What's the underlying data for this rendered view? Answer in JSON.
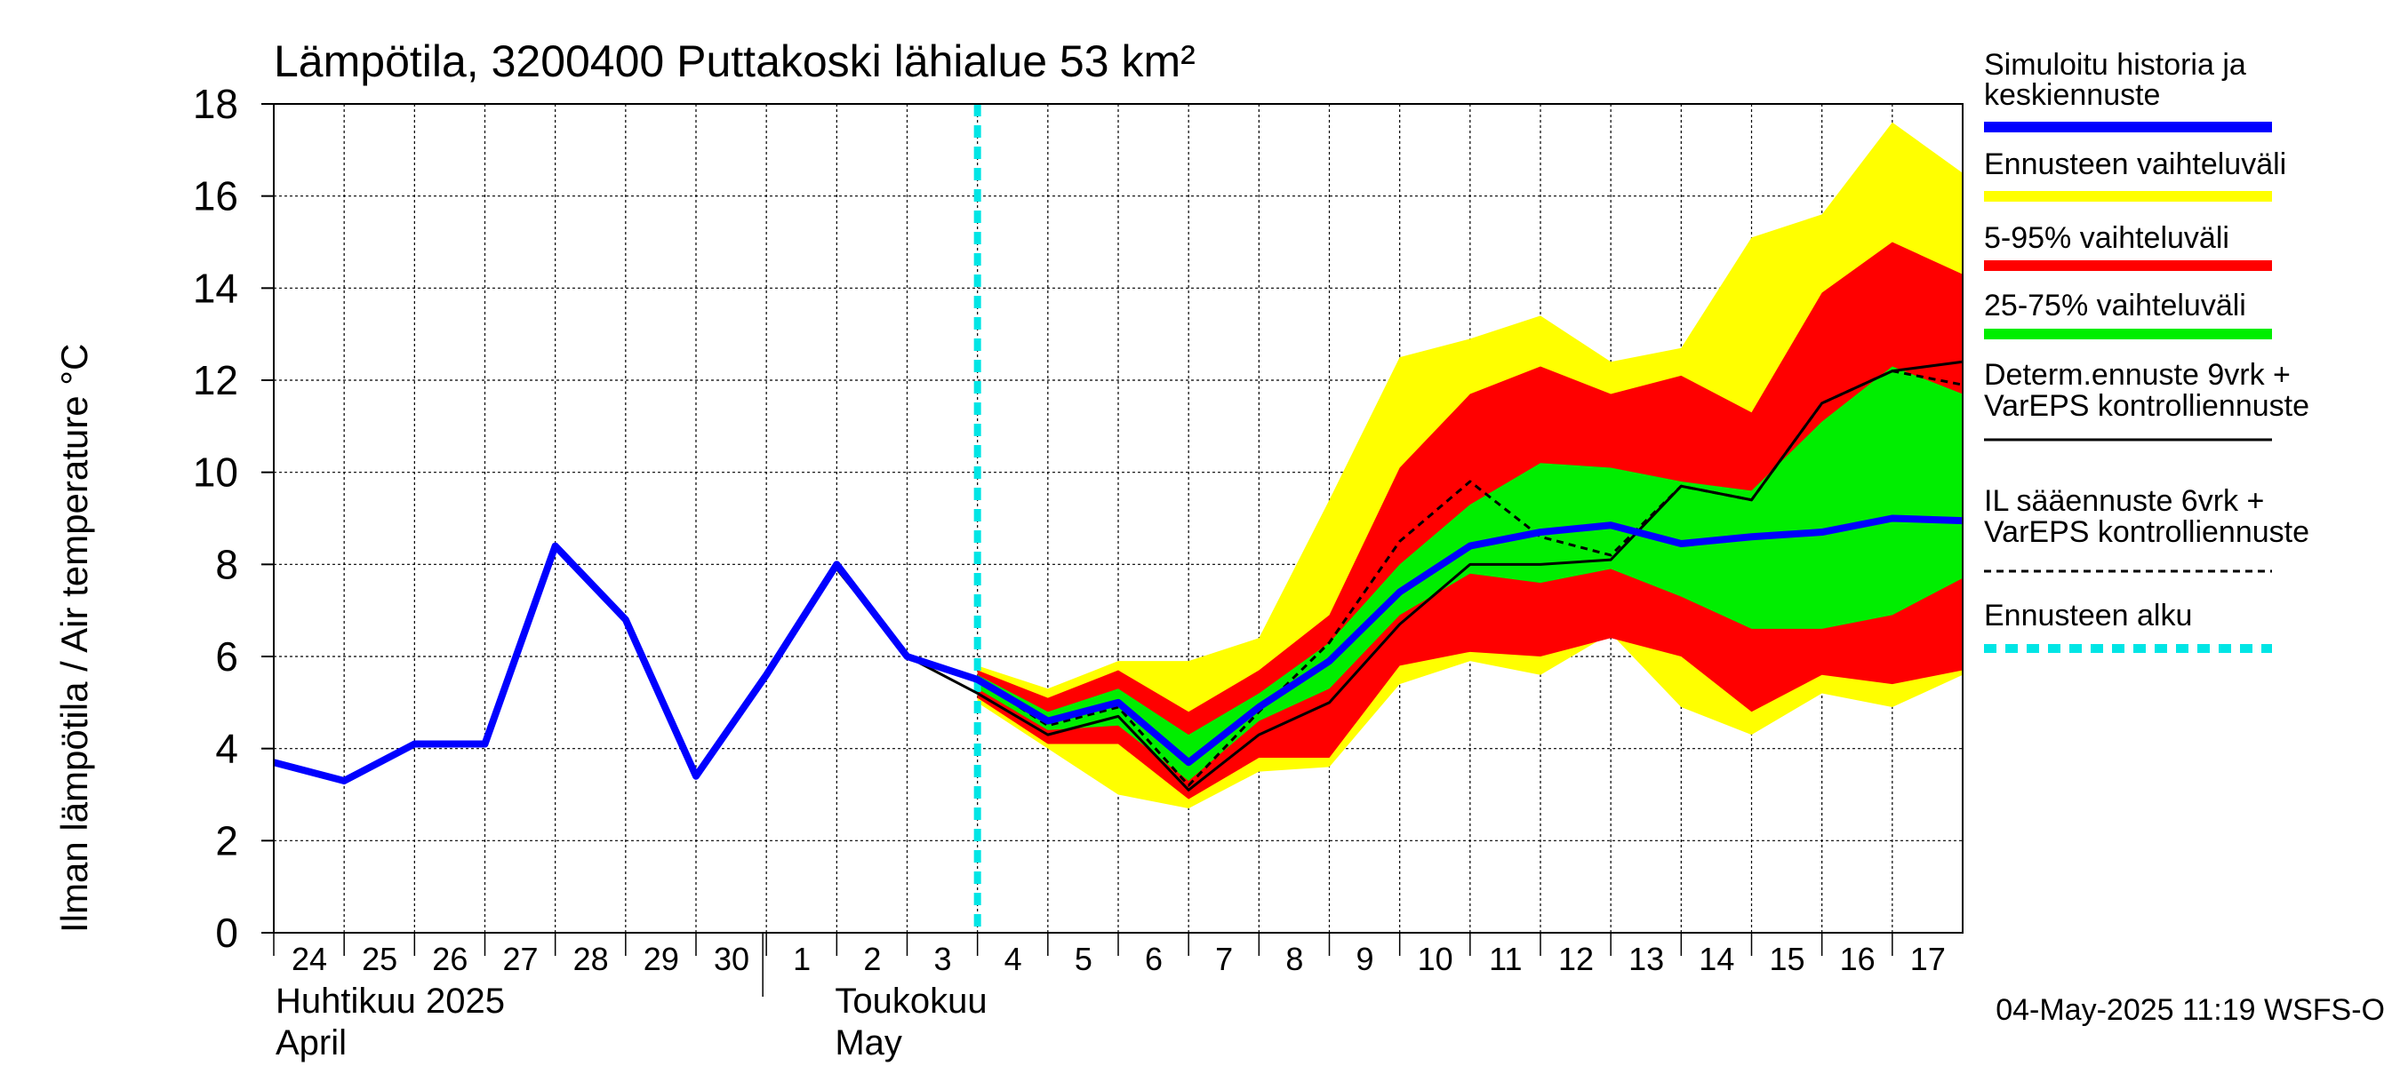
{
  "chart_data": {
    "type": "area",
    "title": "Lämpötila, 3200400 Puttakoski lähialue 53 km²",
    "ylabel": "Ilman lämpötila / Air temperature    °C",
    "ylim": [
      0,
      18
    ],
    "yticks": [
      "0",
      "2",
      "4",
      "6",
      "8",
      "10",
      "12",
      "14",
      "16",
      "18"
    ],
    "xlim": [
      0,
      24
    ],
    "day_labels": [
      "24",
      "25",
      "26",
      "27",
      "28",
      "29",
      "30",
      "1",
      "2",
      "3",
      "4",
      "5",
      "6",
      "7",
      "8",
      "9",
      "10",
      "11",
      "12",
      "13",
      "14",
      "15",
      "16",
      "17"
    ],
    "month_labels": [
      {
        "line1": "Huhtikuu  2025",
        "line2": "April"
      },
      {
        "line1": "Toukokuu",
        "line2": "May"
      }
    ],
    "forecast_start_x": 10,
    "series": [
      {
        "name": "Simuloitu historia ja keskiennuste",
        "color": "#0000ff",
        "x": [
          0,
          1,
          2,
          3,
          4,
          5,
          6,
          7,
          8,
          9,
          10,
          11,
          12,
          13,
          14,
          15,
          16,
          17,
          18,
          19,
          20,
          21,
          22,
          23,
          24
        ],
        "y": [
          3.7,
          3.3,
          4.1,
          4.1,
          8.4,
          6.8,
          3.4,
          5.6,
          8.0,
          6.0,
          5.5,
          4.6,
          5.0,
          3.7,
          4.9,
          5.9,
          7.4,
          8.4,
          8.7,
          8.85,
          8.45,
          8.6,
          8.7,
          9.0,
          8.95
        ]
      },
      {
        "name": "Determ.ennuste 9vrk + VarEPS kontrolliennuste",
        "color": "#000000",
        "x": [
          8,
          9,
          10,
          11,
          12,
          13,
          14,
          15,
          16,
          17,
          18,
          19,
          20,
          21,
          22,
          23,
          24
        ],
        "y": [
          7.9,
          6.0,
          5.2,
          4.3,
          4.7,
          3.1,
          4.3,
          5.0,
          6.7,
          8.0,
          8.0,
          8.1,
          9.7,
          9.4,
          11.5,
          12.2,
          12.4
        ]
      },
      {
        "name": "IL sääennuste 6vrk + VarEPS kontrolliennuste",
        "color": "#000000",
        "dash": true,
        "x": [
          9,
          10,
          11,
          12,
          13,
          14,
          15,
          16,
          17,
          18,
          19,
          20,
          21,
          22,
          23,
          24
        ],
        "y": [
          6.0,
          5.5,
          4.5,
          4.9,
          3.2,
          4.8,
          6.3,
          8.5,
          9.8,
          8.6,
          8.2,
          9.7,
          9.4,
          11.5,
          12.2,
          11.9
        ]
      }
    ],
    "bands": [
      {
        "name": "Ennusteen vaihteluväli",
        "color": "#ffff00",
        "x": [
          10,
          11,
          12,
          13,
          14,
          15,
          16,
          17,
          18,
          19,
          20,
          21,
          22,
          23,
          24
        ],
        "low": [
          5.0,
          4.0,
          3.0,
          2.7,
          3.5,
          3.6,
          5.4,
          5.9,
          5.6,
          6.5,
          4.9,
          4.3,
          5.2,
          4.9,
          5.6
        ],
        "high": [
          5.8,
          5.3,
          5.9,
          5.9,
          6.4,
          9.4,
          12.5,
          12.9,
          13.4,
          12.4,
          12.7,
          15.1,
          15.6,
          17.6,
          16.5
        ]
      },
      {
        "name": "5-95% vaihteluväli",
        "color": "#ff0000",
        "x": [
          10,
          11,
          12,
          13,
          14,
          15,
          16,
          17,
          18,
          19,
          20,
          21,
          22,
          23,
          24
        ],
        "low": [
          5.1,
          4.1,
          4.1,
          2.9,
          3.8,
          3.8,
          5.8,
          6.1,
          6.0,
          6.4,
          6.0,
          4.8,
          5.6,
          5.4,
          5.7
        ],
        "high": [
          5.7,
          5.1,
          5.7,
          4.8,
          5.7,
          6.9,
          10.1,
          11.7,
          12.3,
          11.7,
          12.1,
          11.3,
          13.9,
          15.0,
          14.3
        ]
      },
      {
        "name": "25-75% vaihteluväli",
        "color": "#00ee00",
        "x": [
          10,
          11,
          12,
          13,
          14,
          15,
          16,
          17,
          18,
          19,
          20,
          21,
          22,
          23,
          24
        ],
        "low": [
          5.3,
          4.4,
          4.5,
          3.3,
          4.6,
          5.3,
          6.9,
          7.8,
          7.6,
          7.9,
          7.3,
          6.6,
          6.6,
          6.9,
          7.7
        ],
        "high": [
          5.6,
          4.8,
          5.3,
          4.3,
          5.2,
          6.3,
          8.0,
          9.3,
          10.2,
          10.1,
          9.8,
          9.6,
          11.1,
          12.3,
          11.7
        ]
      }
    ],
    "legend": [
      {
        "label": "Simuloitu historia ja\nkeskiennuste",
        "color": "#0000ff",
        "style": "thick"
      },
      {
        "label": "Ennusteen vaihteluväli",
        "color": "#ffff00",
        "style": "thick"
      },
      {
        "label": "5-95% vaihteluväli",
        "color": "#ff0000",
        "style": "thick"
      },
      {
        "label": "25-75% vaihteluväli",
        "color": "#00ee00",
        "style": "thick"
      },
      {
        "label": "Determ.ennuste 9vrk +\nVarEPS kontrolliennuste",
        "color": "#000000",
        "style": "thin"
      },
      {
        "label": "IL sääennuste 6vrk  +\n  VarEPS kontrolliennuste",
        "color": "#000000",
        "style": "dashed"
      },
      {
        "label": "Ennusteen alku",
        "color": "#00e5e5",
        "style": "cyan-dashed"
      }
    ],
    "footer": "04-May-2025 11:19 WSFS-O",
    "legend_position": "right"
  }
}
